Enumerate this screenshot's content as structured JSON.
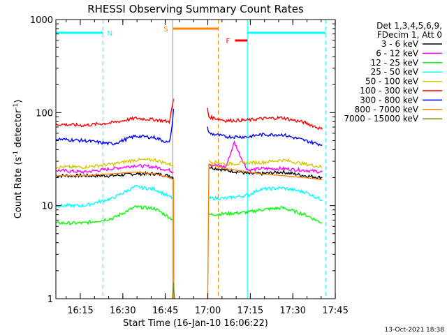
{
  "chart_data": {
    "type": "line",
    "title": "RHESSI Observing Summary Count Rates",
    "xlabel": "Start Time (16-Jan-10 16:06:22)",
    "ylabel_main": "Count Rate (s",
    "ylabel_sup1": "-1",
    "ylabel_mid": " detector",
    "ylabel_sup2": "-1",
    "ylabel_end": ")",
    "yscale": "log",
    "ylim": [
      1,
      1000
    ],
    "xlim_minutes": [
      0,
      98.6
    ],
    "x_ticks": [
      {
        "label": "16:15",
        "m": 8.63
      },
      {
        "label": "16:30",
        "m": 23.63
      },
      {
        "label": "16:45",
        "m": 38.63
      },
      {
        "label": "17:00",
        "m": 53.63
      },
      {
        "label": "17:15",
        "m": 68.63
      },
      {
        "label": "17:30",
        "m": 83.63
      },
      {
        "label": "17:45",
        "m": 98.63
      }
    ],
    "y_ticks": [
      {
        "label": "1",
        "v": 1
      },
      {
        "label": "10",
        "v": 10
      },
      {
        "label": "100",
        "v": 100
      },
      {
        "label": "1000",
        "v": 1000
      }
    ],
    "legend": {
      "placement": "right",
      "header": [
        "Det 1,3,4,5,6,9,",
        "FDecim 1, Att 0"
      ],
      "entries": [
        {
          "label": "3 - 6 keV",
          "color": "#000000"
        },
        {
          "label": "6 - 12 keV",
          "color": "#ff00ff"
        },
        {
          "label": "12 - 25 keV",
          "color": "#00ff00"
        },
        {
          "label": "25 - 50 keV",
          "color": "#00ffff"
        },
        {
          "label": "50 - 100 keV",
          "color": "#d4c800"
        },
        {
          "label": "100 - 300 keV",
          "color": "#ff0000"
        },
        {
          "label": "300 - 800 keV",
          "color": "#0000ff"
        },
        {
          "label": "800 - 7000 keV",
          "color": "#ff8000"
        },
        {
          "label": "7000 - 15000 keV",
          "color": "#808000"
        }
      ]
    },
    "flags": [
      {
        "label": "N",
        "color": "#00ffff",
        "segments": [
          [
            0,
            16.6
          ],
          [
            67.6,
            95.2
          ]
        ]
      },
      {
        "label": "S",
        "color": "#ff8000",
        "segments": [
          [
            41.3,
            57.3
          ]
        ]
      },
      {
        "label": "F",
        "color": "#ff0000",
        "segments": [
          [
            63.2,
            67.6
          ]
        ]
      }
    ],
    "night_boundaries": [
      0,
      16.6,
      67.6,
      95.2
    ],
    "saa_boundaries": [
      41.3,
      57.3
    ],
    "data_gap": [
      42.0,
      53.5
    ],
    "series": [
      {
        "name": "3 - 6 keV",
        "color": "#000000",
        "segments": [
          {
            "x": [
              0,
              10,
              20,
              28,
              35,
              40,
              41.5
            ],
            "y": [
              21,
              21,
              21,
              22,
              22,
              21,
              20
            ]
          },
          {
            "x": [
              54,
              60,
              65,
              68,
              72,
              80,
              88,
              94
            ],
            "y": [
              26,
              24,
              23,
              22,
              22,
              23,
              21,
              20
            ]
          }
        ]
      },
      {
        "name": "6 - 12 keV",
        "color": "#ff00ff",
        "segments": [
          {
            "x": [
              0,
              10,
              20,
              28,
              35,
              40,
              41.5
            ],
            "y": [
              24,
              23,
              25,
              27,
              26,
              24,
              23
            ]
          },
          {
            "x": [
              54,
              60,
              63,
              65,
              67,
              68,
              72,
              80,
              88,
              94
            ],
            "y": [
              28,
              26,
              48,
              35,
              26,
              24,
              25,
              25,
              24,
              23
            ]
          }
        ]
      },
      {
        "name": "12 - 25 keV",
        "color": "#00ff00",
        "segments": [
          {
            "x": [
              0,
              10,
              20,
              28,
              35,
              40,
              41.5
            ],
            "y": [
              6.5,
              6.5,
              7.3,
              9.7,
              9.3,
              7.5,
              7.0
            ]
          },
          {
            "x": [
              54,
              60,
              68,
              72,
              80,
              88,
              94
            ],
            "y": [
              8.0,
              8.2,
              8.5,
              9.0,
              9.5,
              8.0,
              6.5
            ]
          }
        ]
      },
      {
        "name": "25 - 50 keV",
        "color": "#00ffff",
        "segments": [
          {
            "x": [
              0,
              10,
              20,
              28,
              35,
              40,
              41.5
            ],
            "y": [
              10,
              10,
              12,
              16,
              15,
              12.5,
              12
            ]
          },
          {
            "x": [
              54,
              60,
              68,
              72,
              80,
              88,
              94
            ],
            "y": [
              12,
              12,
              13,
              15,
              15.5,
              14,
              11.5
            ]
          }
        ]
      },
      {
        "name": "50 - 100 keV",
        "color": "#d4c800",
        "segments": [
          {
            "x": [
              0,
              10,
              20,
              28,
              35,
              40,
              41.5
            ],
            "y": [
              26,
              26,
              28,
              31,
              31,
              28,
              27
            ]
          },
          {
            "x": [
              54,
              60,
              68,
              72,
              80,
              88,
              94
            ],
            "y": [
              30,
              28,
              29,
              29,
              31,
              28,
              26
            ]
          }
        ]
      },
      {
        "name": "100 - 300 keV",
        "color": "#ff0000",
        "segments": [
          {
            "x": [
              0,
              10,
              20,
              28,
              35,
              40,
              41.2,
              41.5
            ],
            "y": [
              75,
              73,
              78,
              87,
              84,
              80,
              120,
              140
            ]
          },
          {
            "x": [
              53.5,
              54,
              60,
              68,
              72,
              80,
              88,
              94
            ],
            "y": [
              110,
              90,
              82,
              83,
              86,
              88,
              78,
              66
            ]
          }
        ]
      },
      {
        "name": "300 - 800 keV",
        "color": "#0000ff",
        "segments": [
          {
            "x": [
              0,
              10,
              20,
              28,
              35,
              40,
              41,
              41.5
            ],
            "y": [
              52,
              50,
              46,
              56,
              54,
              47,
              70,
              110
            ]
          },
          {
            "x": [
              53.5,
              54,
              60,
              68,
              72,
              80,
              88,
              94
            ],
            "y": [
              70,
              60,
              55,
              55,
              58,
              58,
              50,
              45
            ]
          }
        ]
      },
      {
        "name": "800 - 7000 keV",
        "color": "#ff8000",
        "segments": [
          {
            "x": [
              0,
              10,
              20,
              28,
              35,
              40,
              41.5,
              41.6
            ],
            "y": [
              21,
              21,
              22,
              23,
              22,
              20,
              19,
              1
            ]
          },
          {
            "x": [
              53.6,
              54,
              60,
              68,
              72,
              80,
              88,
              94
            ],
            "y": [
              1,
              28,
              25,
              23,
              22,
              21,
              20,
              19
            ]
          }
        ]
      },
      {
        "name": "7000 - 15000 keV",
        "color": "#808000",
        "segments": [
          {
            "x": [
              41.2,
              41.5,
              41.8
            ],
            "y": [
              1,
              1.5,
              1
            ]
          }
        ]
      }
    ]
  },
  "footer": {
    "timestamp": "13-Oct-2021 18:38"
  }
}
